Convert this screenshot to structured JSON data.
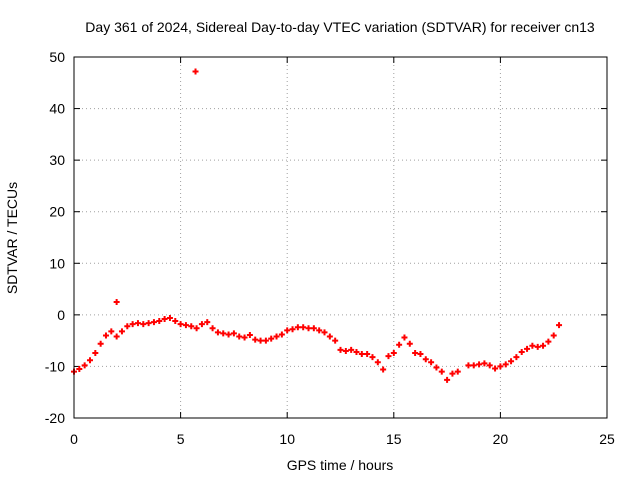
{
  "chart_data": {
    "type": "scatter",
    "title": "Day 361 of 2024, Sidereal Day-to-day VTEC variation (SDTVAR) for receiver cn13",
    "xlabel": "GPS time / hours",
    "ylabel": "SDTVAR / TECUs",
    "xlim": [
      0,
      25
    ],
    "ylim": [
      -20,
      50
    ],
    "x_ticks": [
      0,
      5,
      10,
      15,
      20,
      25
    ],
    "y_ticks": [
      -20,
      -10,
      0,
      10,
      20,
      30,
      40,
      50
    ],
    "x_tick_labels": [
      "0",
      "5",
      "10",
      "15",
      "20",
      "25"
    ],
    "y_tick_labels": [
      "-20",
      "-10",
      "0",
      "10",
      "20",
      "30",
      "40",
      "50"
    ],
    "grid": true,
    "marker": "plus",
    "series": [
      {
        "name": "SDTVAR",
        "color": "#ff0000",
        "x": [
          0.0,
          0.25,
          0.5,
          0.75,
          1.0,
          1.25,
          1.5,
          1.75,
          2.0,
          2.25,
          2.5,
          2.75,
          3.0,
          3.25,
          3.5,
          3.75,
          4.0,
          4.25,
          4.5,
          4.75,
          5.0,
          5.25,
          5.5,
          5.75,
          6.0,
          6.25,
          6.5,
          6.75,
          7.0,
          7.25,
          7.5,
          7.75,
          8.0,
          8.25,
          8.5,
          8.75,
          9.0,
          9.25,
          9.5,
          9.75,
          10.0,
          10.25,
          10.5,
          10.75,
          11.0,
          11.25,
          11.5,
          11.75,
          12.0,
          12.25,
          12.5,
          12.75,
          13.0,
          13.25,
          13.5,
          13.75,
          14.0,
          14.25,
          14.5,
          14.75,
          15.0,
          15.25,
          15.5,
          15.75,
          16.0,
          16.25,
          16.5,
          16.75,
          17.0,
          17.25,
          17.5,
          17.75,
          18.0,
          18.5,
          18.75,
          19.0,
          19.25,
          19.5,
          19.75,
          20.0,
          20.25,
          20.5,
          20.75,
          21.0,
          21.25,
          21.5,
          21.75,
          22.0,
          22.25,
          22.5,
          22.75,
          2.0,
          5.7
        ],
        "values": [
          -11.0,
          -10.5,
          -9.8,
          -8.8,
          -7.4,
          -5.6,
          -4.0,
          -3.2,
          -4.2,
          -3.2,
          -2.2,
          -1.8,
          -1.6,
          -1.8,
          -1.6,
          -1.4,
          -1.2,
          -0.8,
          -0.6,
          -1.2,
          -1.8,
          -2.0,
          -2.2,
          -2.6,
          -1.8,
          -1.4,
          -2.6,
          -3.4,
          -3.6,
          -3.8,
          -3.6,
          -4.2,
          -4.4,
          -3.9,
          -4.8,
          -5.0,
          -5.0,
          -4.6,
          -4.2,
          -3.8,
          -3.0,
          -2.8,
          -2.4,
          -2.4,
          -2.6,
          -2.6,
          -3.0,
          -3.4,
          -4.2,
          -5.0,
          -6.8,
          -7.0,
          -6.8,
          -7.2,
          -7.6,
          -7.6,
          -8.2,
          -9.2,
          -10.6,
          -8.0,
          -7.4,
          -5.8,
          -4.4,
          -5.6,
          -7.4,
          -7.6,
          -8.6,
          -9.2,
          -10.2,
          -11.0,
          -12.6,
          -11.4,
          -11.0,
          -9.8,
          -9.8,
          -9.6,
          -9.4,
          -9.8,
          -10.4,
          -10.0,
          -9.6,
          -9.0,
          -8.2,
          -7.2,
          -6.6,
          -6.0,
          -6.2,
          -6.0,
          -5.2,
          -4.0,
          -2.0,
          2.5,
          47.2
        ]
      }
    ]
  }
}
